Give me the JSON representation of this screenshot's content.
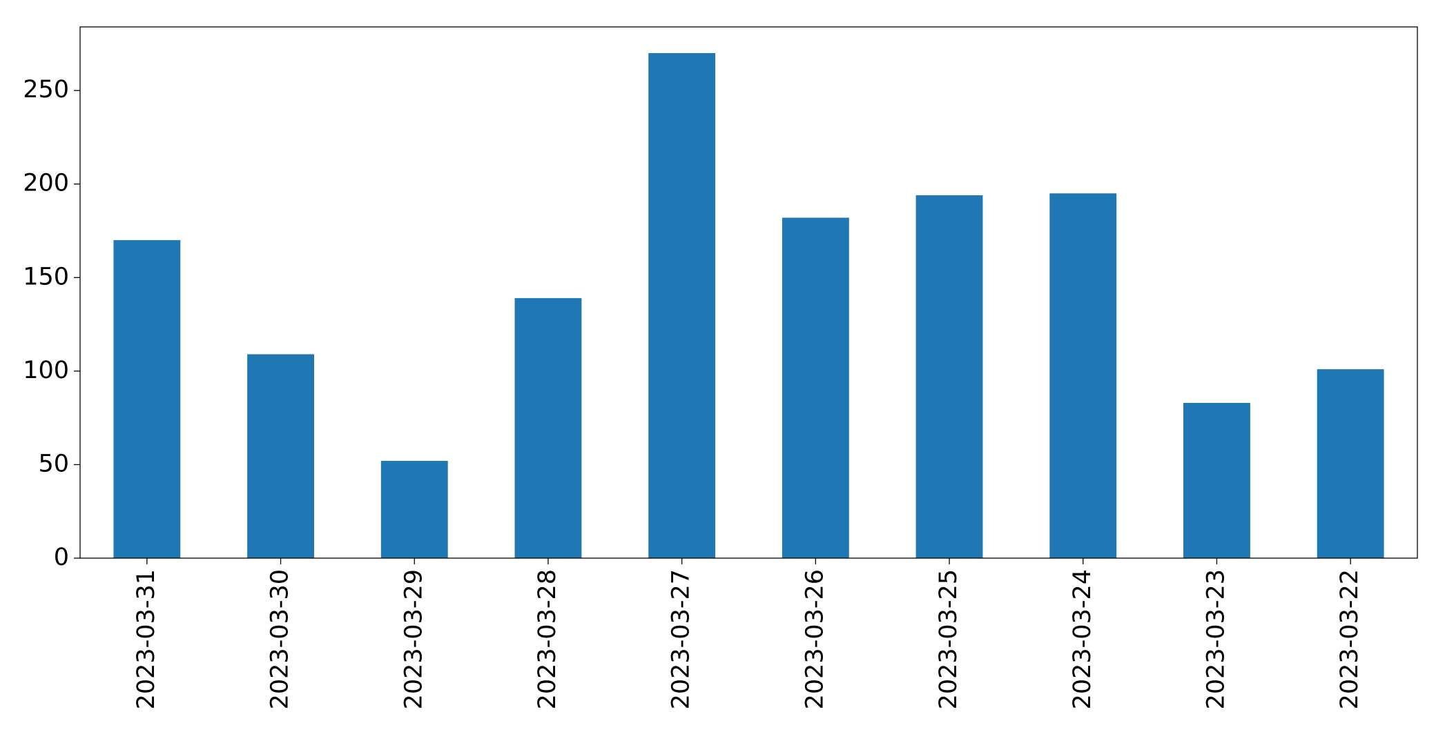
{
  "chart_data": {
    "type": "bar",
    "categories": [
      "2023-03-31",
      "2023-03-30",
      "2023-03-29",
      "2023-03-28",
      "2023-03-27",
      "2023-03-26",
      "2023-03-25",
      "2023-03-24",
      "2023-03-23",
      "2023-03-22"
    ],
    "values": [
      170,
      109,
      52,
      139,
      270,
      182,
      194,
      195,
      83,
      101
    ],
    "color": "#1f77b4",
    "ylim": [
      0,
      284
    ],
    "yticks": [
      0,
      50,
      100,
      150,
      200,
      250
    ],
    "grid": false
  }
}
